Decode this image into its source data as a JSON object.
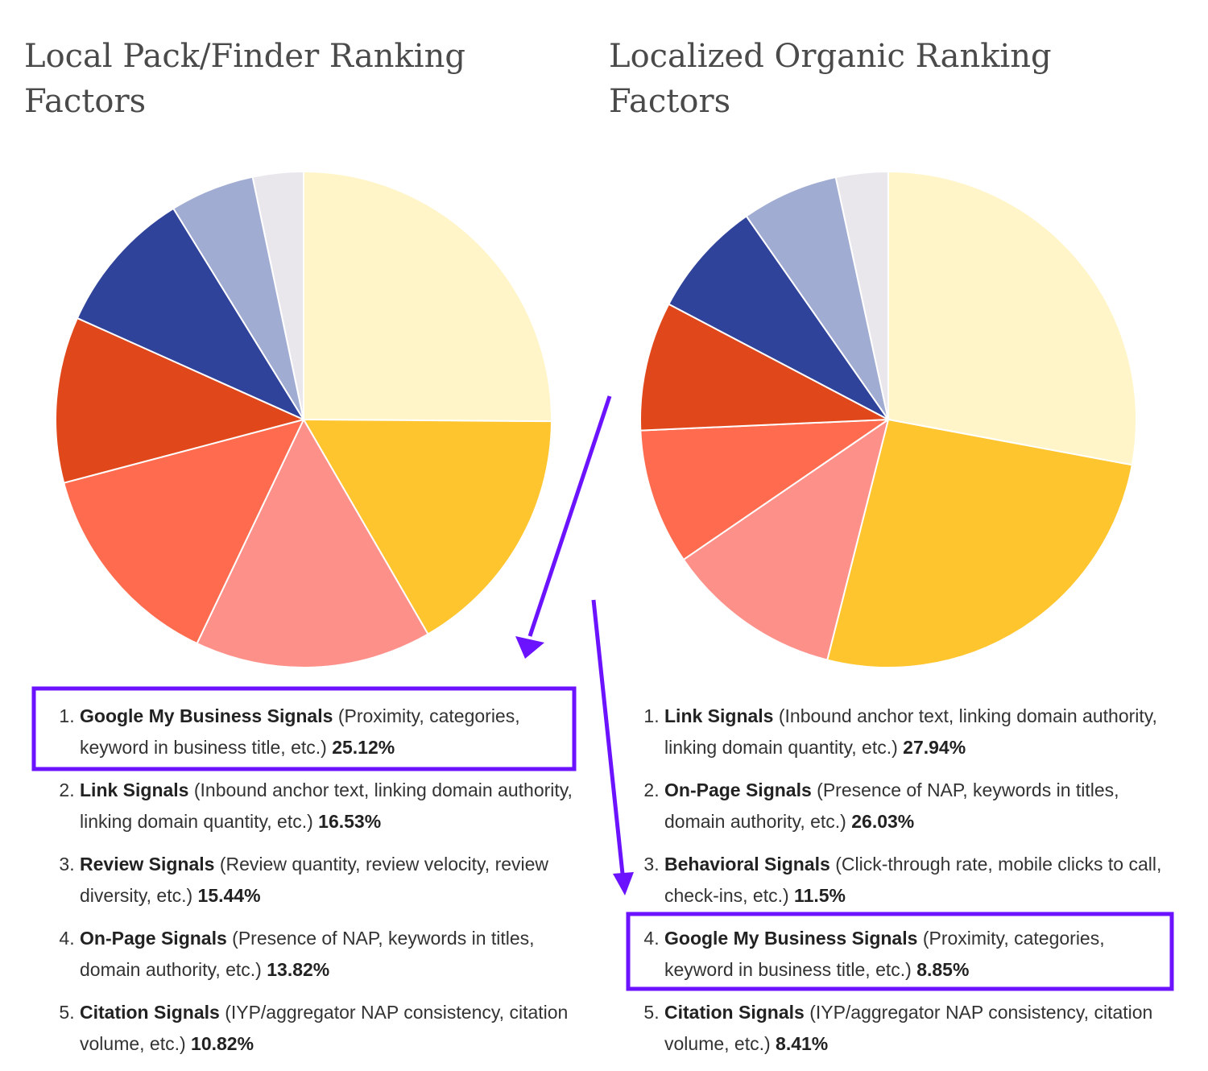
{
  "chart_data": [
    {
      "type": "pie",
      "title": "Local Pack/Finder Ranking Factors",
      "categories": [
        "Google My Business Signals",
        "Link Signals",
        "Review Signals",
        "On-Page Signals",
        "Citation Signals",
        null,
        null,
        null
      ],
      "descriptions": [
        "(Proximity, categories, keyword in business title, etc.)",
        "(Inbound anchor text, linking domain authority, linking domain quantity, etc.)",
        "(Review quantity, review velocity, review diversity, etc.)",
        "(Presence of NAP, keywords in titles, domain authority, etc.)",
        "(IYP/aggregator NAP consistency, citation volume, etc.)",
        null,
        null,
        null
      ],
      "values": [
        25.12,
        16.53,
        15.44,
        13.82,
        10.82,
        9.5,
        5.5,
        3.3
      ],
      "value_labels": [
        "25.12%",
        "16.53%",
        "15.44%",
        "13.82%",
        "10.82%",
        null,
        null,
        null
      ],
      "colors": [
        "#fff5c9",
        "#fec52e",
        "#fe908a",
        "#fe6b4e",
        "#e0481c",
        "#2f439b",
        "#a1acd3",
        "#e9e6ec"
      ]
    },
    {
      "type": "pie",
      "title": "Localized Organic Ranking Factors",
      "categories": [
        "Link Signals",
        "On-Page Signals",
        "Behavioral Signals",
        "Google My Business Signals",
        "Citation Signals",
        null,
        null,
        null
      ],
      "descriptions": [
        "(Inbound anchor text, linking domain authority, linking domain quantity, etc.)",
        "(Presence of NAP, keywords in titles, domain authority, etc.)",
        "(Click-through rate, mobile clicks to call, check-ins, etc.)",
        "(Proximity, categories, keyword in business title, etc.)",
        "(IYP/aggregator NAP consistency, citation volume, etc.)",
        null,
        null,
        null
      ],
      "values": [
        27.94,
        26.03,
        11.5,
        8.85,
        8.41,
        7.6,
        6.3,
        3.4
      ],
      "value_labels": [
        "27.94%",
        "26.03%",
        "11.5%",
        "8.85%",
        "8.41%",
        null,
        null,
        null
      ],
      "colors": [
        "#fff5c9",
        "#fec52e",
        "#fe908a",
        "#fe6b4e",
        "#e0481c",
        "#2f439b",
        "#a1acd3",
        "#e9e6ec"
      ]
    }
  ]
}
